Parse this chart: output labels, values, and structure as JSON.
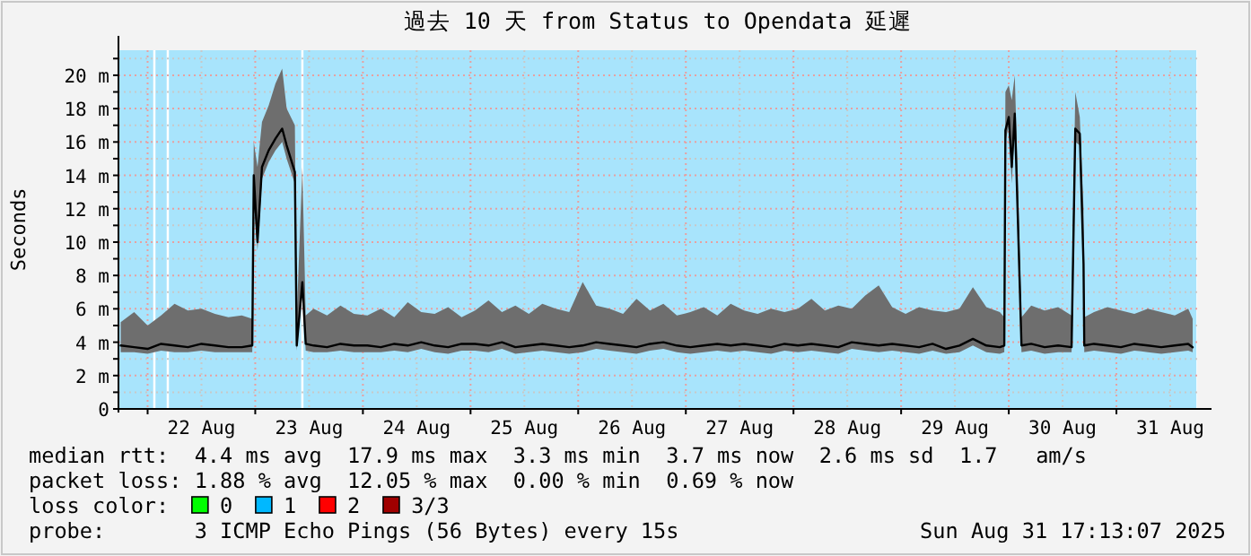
{
  "chart_data": {
    "type": "line",
    "title": "過去 10 天 from Status to Opendata 延遲",
    "ylabel": "Seconds",
    "xlim": [
      "2025-08-21T17:30",
      "2025-08-31T18:00"
    ],
    "xticks": [
      {
        "value": "2025-08-22T00:00",
        "label": null
      },
      {
        "value": "2025-08-23T00:00",
        "label": null
      },
      {
        "value": "2025-08-24T00:00",
        "label": null
      },
      {
        "value": "2025-08-25T00:00",
        "label": null
      },
      {
        "value": "2025-08-26T00:00",
        "label": null
      },
      {
        "value": "2025-08-27T00:00",
        "label": null
      },
      {
        "value": "2025-08-28T00:00",
        "label": null
      },
      {
        "value": "2025-08-29T00:00",
        "label": null
      },
      {
        "value": "2025-08-30T00:00",
        "label": null
      },
      {
        "value": "2025-08-31T00:00",
        "label": null
      },
      {
        "value": "2025-08-22T12:00",
        "label": "22 Aug"
      },
      {
        "value": "2025-08-23T12:00",
        "label": "23 Aug"
      },
      {
        "value": "2025-08-24T12:00",
        "label": "24 Aug"
      },
      {
        "value": "2025-08-25T12:00",
        "label": "25 Aug"
      },
      {
        "value": "2025-08-26T12:00",
        "label": "26 Aug"
      },
      {
        "value": "2025-08-27T12:00",
        "label": "27 Aug"
      },
      {
        "value": "2025-08-28T12:00",
        "label": "28 Aug"
      },
      {
        "value": "2025-08-29T12:00",
        "label": "29 Aug"
      },
      {
        "value": "2025-08-30T12:00",
        "label": "30 Aug"
      },
      {
        "value": "2025-08-31T12:00",
        "label": "31 Aug"
      }
    ],
    "ylim": [
      0,
      21.5
    ],
    "yticks": [
      0,
      {
        "value": 1,
        "label": null
      },
      {
        "value": 2,
        "label": "2 m"
      },
      {
        "value": 3,
        "label": null
      },
      {
        "value": 4,
        "label": "4 m"
      },
      {
        "value": 5,
        "label": null
      },
      {
        "value": 6,
        "label": "6 m"
      },
      {
        "value": 7,
        "label": null
      },
      {
        "value": 8,
        "label": "8 m"
      },
      {
        "value": 9,
        "label": null
      },
      {
        "value": 10,
        "label": "10 m"
      },
      {
        "value": 11,
        "label": null
      },
      {
        "value": 12,
        "label": "12 m"
      },
      {
        "value": 13,
        "label": null
      },
      {
        "value": 14,
        "label": "14 m"
      },
      {
        "value": 15,
        "label": null
      },
      {
        "value": 16,
        "label": "16 m"
      },
      {
        "value": 17,
        "label": null
      },
      {
        "value": 18,
        "label": "18 m"
      },
      {
        "value": 19,
        "label": null
      },
      {
        "value": 20,
        "label": "20 m"
      },
      {
        "value": 21,
        "label": null
      }
    ],
    "grid": true,
    "bands": [
      {
        "axis": "x",
        "from": "2025-08-21T17:30",
        "to": "2025-08-22T01:15",
        "color": "#a8e4fc"
      },
      {
        "axis": "x",
        "from": "2025-08-22T01:45",
        "to": "2025-08-22T04:15",
        "color": "#a8e4fc"
      },
      {
        "axis": "x",
        "from": "2025-08-22T04:45",
        "to": "2025-08-23T10:15",
        "color": "#a8e4fc"
      },
      {
        "axis": "x",
        "from": "2025-08-23T10:45",
        "to": "2025-08-31T17:50",
        "color": "#a8e4fc"
      }
    ],
    "series": [
      {
        "color": "#000000",
        "x": [
          "2025-08-21T18:00",
          "2025-08-21T21:00",
          "2025-08-22T00:00",
          "2025-08-22T03:00",
          "2025-08-22T06:00",
          "2025-08-22T09:00",
          "2025-08-22T12:00",
          "2025-08-22T15:00",
          "2025-08-22T18:00",
          "2025-08-22T21:00",
          "2025-08-22T23:20",
          "2025-08-22T23:40",
          "2025-08-23T00:30",
          "2025-08-23T01:30",
          "2025-08-23T03:00",
          "2025-08-23T04:30",
          "2025-08-23T06:00",
          "2025-08-23T07:00",
          "2025-08-23T08:50",
          "2025-08-23T09:15",
          "2025-08-23T10:30",
          "2025-08-23T11:15",
          "2025-08-23T13:00",
          "2025-08-23T16:00",
          "2025-08-23T19:00",
          "2025-08-23T22:00",
          "2025-08-24T01:00",
          "2025-08-24T04:00",
          "2025-08-24T07:00",
          "2025-08-24T10:00",
          "2025-08-24T13:00",
          "2025-08-24T16:00",
          "2025-08-24T19:00",
          "2025-08-24T22:00",
          "2025-08-25T01:00",
          "2025-08-25T04:00",
          "2025-08-25T07:00",
          "2025-08-25T10:00",
          "2025-08-25T13:00",
          "2025-08-25T16:00",
          "2025-08-25T19:00",
          "2025-08-25T22:00",
          "2025-08-26T01:00",
          "2025-08-26T04:00",
          "2025-08-26T07:00",
          "2025-08-26T10:00",
          "2025-08-26T13:00",
          "2025-08-26T16:00",
          "2025-08-26T19:00",
          "2025-08-26T22:00",
          "2025-08-27T01:00",
          "2025-08-27T04:00",
          "2025-08-27T07:00",
          "2025-08-27T10:00",
          "2025-08-27T13:00",
          "2025-08-27T16:00",
          "2025-08-27T19:00",
          "2025-08-27T22:00",
          "2025-08-28T01:00",
          "2025-08-28T04:00",
          "2025-08-28T07:00",
          "2025-08-28T10:00",
          "2025-08-28T13:00",
          "2025-08-28T16:00",
          "2025-08-28T19:00",
          "2025-08-28T22:00",
          "2025-08-29T01:00",
          "2025-08-29T04:00",
          "2025-08-29T07:00",
          "2025-08-29T10:00",
          "2025-08-29T13:00",
          "2025-08-29T16:00",
          "2025-08-29T19:00",
          "2025-08-29T22:00",
          "2025-08-29T23:00",
          "2025-08-29T23:15",
          "2025-08-30T00:00",
          "2025-08-30T00:40",
          "2025-08-30T01:20",
          "2025-08-30T02:00",
          "2025-08-30T02:50",
          "2025-08-30T05:00",
          "2025-08-30T08:00",
          "2025-08-30T11:00",
          "2025-08-30T14:00",
          "2025-08-30T14:50",
          "2025-08-30T15:50",
          "2025-08-30T16:40",
          "2025-08-30T16:50",
          "2025-08-30T19:00",
          "2025-08-30T22:00",
          "2025-08-31T01:00",
          "2025-08-31T04:00",
          "2025-08-31T07:00",
          "2025-08-31T10:00",
          "2025-08-31T13:00",
          "2025-08-31T16:00",
          "2025-08-31T17:00"
        ],
        "values": [
          3.8,
          3.7,
          3.6,
          3.9,
          3.8,
          3.7,
          3.9,
          3.8,
          3.7,
          3.7,
          3.8,
          14.0,
          10.0,
          14.5,
          15.5,
          16.2,
          16.8,
          15.8,
          14.2,
          3.8,
          7.6,
          3.9,
          3.8,
          3.7,
          3.9,
          3.8,
          3.8,
          3.7,
          3.9,
          3.8,
          4.0,
          3.8,
          3.7,
          3.9,
          3.9,
          3.8,
          4.0,
          3.7,
          3.8,
          3.9,
          3.8,
          3.7,
          3.8,
          4.0,
          3.9,
          3.8,
          3.7,
          3.9,
          4.0,
          3.8,
          3.7,
          3.8,
          3.9,
          3.8,
          3.9,
          3.8,
          3.7,
          3.9,
          3.8,
          3.9,
          3.8,
          3.7,
          4.0,
          3.9,
          3.8,
          3.9,
          3.8,
          3.7,
          3.9,
          3.6,
          3.8,
          4.2,
          3.8,
          3.7,
          3.8,
          16.7,
          17.5,
          14.5,
          17.7,
          11.6,
          3.8,
          3.9,
          3.7,
          3.8,
          3.7,
          16.8,
          16.5,
          8.7,
          3.8,
          3.9,
          3.8,
          3.7,
          3.9,
          3.8,
          3.7,
          3.8,
          3.9,
          3.7
        ],
        "lower": [
          3.4,
          3.4,
          3.3,
          3.5,
          3.4,
          3.4,
          3.5,
          3.4,
          3.4,
          3.4,
          3.4,
          12.5,
          9.5,
          13.8,
          14.8,
          15.5,
          16.0,
          15.0,
          13.5,
          3.5,
          7.0,
          3.5,
          3.4,
          3.4,
          3.5,
          3.4,
          3.4,
          3.4,
          3.5,
          3.4,
          3.6,
          3.4,
          3.3,
          3.5,
          3.5,
          3.4,
          3.6,
          3.3,
          3.4,
          3.5,
          3.4,
          3.3,
          3.4,
          3.6,
          3.5,
          3.4,
          3.3,
          3.5,
          3.6,
          3.4,
          3.3,
          3.4,
          3.5,
          3.4,
          3.5,
          3.4,
          3.3,
          3.5,
          3.4,
          3.5,
          3.4,
          3.3,
          3.6,
          3.5,
          3.4,
          3.5,
          3.4,
          3.3,
          3.5,
          3.3,
          3.4,
          3.8,
          3.4,
          3.3,
          3.4,
          16.0,
          17.0,
          13.5,
          17.0,
          11.0,
          3.4,
          3.5,
          3.3,
          3.4,
          3.4,
          16.0,
          15.8,
          8.3,
          3.4,
          3.5,
          3.4,
          3.3,
          3.5,
          3.4,
          3.3,
          3.4,
          3.5,
          3.4
        ],
        "upper": [
          5.2,
          5.8,
          5.0,
          5.6,
          6.3,
          5.9,
          6.0,
          5.7,
          5.5,
          5.6,
          5.4,
          16.0,
          14.5,
          17.2,
          18.2,
          19.5,
          20.4,
          18.0,
          17.0,
          5.5,
          14.5,
          5.6,
          6.0,
          5.6,
          6.2,
          5.7,
          5.6,
          6.0,
          5.5,
          6.4,
          5.8,
          5.7,
          6.1,
          5.5,
          5.9,
          6.5,
          5.8,
          6.2,
          5.7,
          6.3,
          6.0,
          5.8,
          7.6,
          6.2,
          6.0,
          5.7,
          6.6,
          5.9,
          6.3,
          5.6,
          5.8,
          6.1,
          5.6,
          6.3,
          5.9,
          5.7,
          6.0,
          5.8,
          6.0,
          6.6,
          5.9,
          6.2,
          6.0,
          6.8,
          7.4,
          6.1,
          5.7,
          6.1,
          5.9,
          5.8,
          6.0,
          7.3,
          6.1,
          5.8,
          5.5,
          19.0,
          19.4,
          18.5,
          20.0,
          14.0,
          5.5,
          6.2,
          5.9,
          6.1,
          5.6,
          19.0,
          17.5,
          12.0,
          5.5,
          5.8,
          6.1,
          5.9,
          5.7,
          6.0,
          5.8,
          5.6,
          6.0,
          5.4
        ]
      }
    ],
    "annotations": [
      "median rtt:  4.4 ms avg  17.9 ms max  3.3 ms min  3.7 ms now  2.6 ms sd  1.7   am/s",
      "packet loss: 1.88 % avg  12.05 % max  0.00 % min  0.69 % now",
      "loss color:    0    1    2    3/3",
      "probe:       3 ICMP Echo Pings (56 Bytes) every 15s",
      "Sun Aug 31 17:13:07 2025"
    ]
  }
}
